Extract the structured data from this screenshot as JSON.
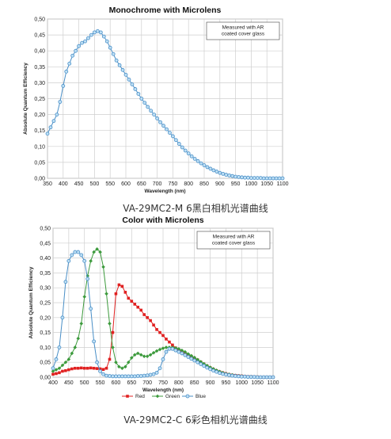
{
  "captions": {
    "mono": "VA-29MC2-M 6黑白相机光谱曲线",
    "color": "VA-29MC2-C 6彩色相机光谱曲线"
  },
  "colors": {
    "mono": "#4a8fc7",
    "red": "#e02020",
    "green": "#3c9a3c",
    "blue": "#4a8fc7",
    "grid": "#cfcfcf"
  },
  "chart_data": [
    {
      "type": "line",
      "title": "Monochrome with Microlens",
      "xlabel": "Wavelength (nm)",
      "ylabel": "Absolute Quantum Efficiency",
      "note": [
        "Measured with AR",
        "coated cover glass"
      ],
      "xlim": [
        350,
        1100
      ],
      "ylim": [
        0,
        0.5
      ],
      "xticks": [
        350,
        400,
        450,
        500,
        550,
        600,
        650,
        700,
        750,
        800,
        850,
        900,
        950,
        1000,
        1050,
        1100
      ],
      "xtick_labels": [
        "350",
        "400",
        "450",
        "500",
        "550",
        "600",
        "650",
        "700",
        "750",
        "800",
        "850",
        "900",
        "950",
        "1000",
        "1050",
        "1100"
      ],
      "yticks": [
        0,
        0.05,
        0.1,
        0.15,
        0.2,
        0.25,
        0.3,
        0.35,
        0.4,
        0.45,
        0.5
      ],
      "ytick_labels": [
        "0,00",
        "0,05",
        "0,10",
        "0,15",
        "0,20",
        "0,25",
        "0,30",
        "0,35",
        "0,40",
        "0,45",
        "0,50"
      ],
      "grid": true,
      "series": [
        {
          "color_key": "mono",
          "x": [
            350,
            360,
            370,
            380,
            390,
            400,
            410,
            420,
            430,
            440,
            450,
            460,
            470,
            480,
            490,
            500,
            510,
            520,
            530,
            540,
            550,
            560,
            570,
            580,
            590,
            600,
            610,
            620,
            630,
            640,
            650,
            660,
            670,
            680,
            690,
            700,
            710,
            720,
            730,
            740,
            750,
            760,
            770,
            780,
            790,
            800,
            810,
            820,
            830,
            840,
            850,
            860,
            870,
            880,
            890,
            900,
            910,
            920,
            930,
            940,
            950,
            960,
            970,
            980,
            990,
            1000,
            1010,
            1020,
            1030,
            1040,
            1050,
            1060,
            1070,
            1080,
            1090,
            1100
          ],
          "values": [
            0.14,
            0.16,
            0.18,
            0.2,
            0.24,
            0.29,
            0.335,
            0.36,
            0.385,
            0.4,
            0.415,
            0.425,
            0.43,
            0.44,
            0.45,
            0.458,
            0.462,
            0.458,
            0.445,
            0.43,
            0.41,
            0.39,
            0.37,
            0.355,
            0.34,
            0.325,
            0.31,
            0.295,
            0.28,
            0.265,
            0.25,
            0.237,
            0.224,
            0.212,
            0.2,
            0.188,
            0.176,
            0.165,
            0.154,
            0.143,
            0.132,
            0.12,
            0.108,
            0.097,
            0.087,
            0.078,
            0.069,
            0.061,
            0.054,
            0.047,
            0.041,
            0.035,
            0.03,
            0.025,
            0.021,
            0.017,
            0.014,
            0.011,
            0.009,
            0.007,
            0.005,
            0.004,
            0.003,
            0.002,
            0.002,
            0.001,
            0.001,
            0.001,
            0.001,
            0.0,
            0.0,
            0.0,
            0.0,
            0.0,
            0.0,
            0.0
          ]
        }
      ]
    },
    {
      "type": "line",
      "title": "Color with Microlens",
      "xlabel": "Wavelength (nm)",
      "ylabel": "Absolute Quantum Efficiency",
      "note": [
        "Measured with AR",
        "coated cover glass"
      ],
      "xlim": [
        400,
        1100
      ],
      "ylim": [
        0,
        0.5
      ],
      "xticks": [
        400,
        450,
        500,
        550,
        600,
        650,
        700,
        750,
        800,
        850,
        900,
        950,
        1000,
        1050,
        1100
      ],
      "xtick_labels": [
        "400",
        "450",
        "500",
        "550",
        "600",
        "650",
        "700",
        "750",
        "800",
        "850",
        "900",
        "950",
        "1000",
        "1050",
        "1100"
      ],
      "yticks": [
        0,
        0.05,
        0.1,
        0.15,
        0.2,
        0.25,
        0.3,
        0.35,
        0.4,
        0.45,
        0.5
      ],
      "ytick_labels": [
        "0,00",
        "0,05",
        "0,10",
        "0,15",
        "0,20",
        "0,25",
        "0,30",
        "0,35",
        "0,40",
        "0,45",
        "0,50"
      ],
      "grid": true,
      "legend": "bottom",
      "series": [
        {
          "name": "Red",
          "color_key": "red",
          "marker": "square",
          "x": [
            400,
            410,
            420,
            430,
            440,
            450,
            460,
            470,
            480,
            490,
            500,
            510,
            520,
            530,
            540,
            550,
            560,
            570,
            580,
            590,
            600,
            610,
            620,
            630,
            640,
            650,
            660,
            670,
            680,
            690,
            700,
            710,
            720,
            730,
            740,
            750,
            760,
            770,
            780,
            790,
            800,
            810,
            820,
            830,
            840,
            850,
            860,
            870,
            880,
            890,
            900,
            910,
            920,
            930,
            940,
            950,
            960,
            970,
            980,
            990,
            1000,
            1010,
            1020,
            1030,
            1040,
            1050,
            1060,
            1070,
            1080,
            1090,
            1100
          ],
          "values": [
            0.01,
            0.012,
            0.015,
            0.02,
            0.022,
            0.025,
            0.028,
            0.03,
            0.03,
            0.031,
            0.03,
            0.03,
            0.031,
            0.03,
            0.029,
            0.028,
            0.026,
            0.03,
            0.06,
            0.15,
            0.28,
            0.31,
            0.305,
            0.285,
            0.265,
            0.255,
            0.245,
            0.235,
            0.225,
            0.21,
            0.2,
            0.19,
            0.175,
            0.16,
            0.15,
            0.14,
            0.128,
            0.118,
            0.108,
            0.098,
            0.09,
            0.085,
            0.08,
            0.075,
            0.07,
            0.064,
            0.058,
            0.051,
            0.044,
            0.038,
            0.032,
            0.027,
            0.022,
            0.018,
            0.015,
            0.012,
            0.009,
            0.007,
            0.006,
            0.005,
            0.004,
            0.003,
            0.002,
            0.002,
            0.001,
            0.001,
            0.0,
            0.0,
            0.0,
            0.0,
            0.0
          ]
        },
        {
          "name": "Green",
          "color_key": "green",
          "marker": "diamond",
          "x": [
            400,
            410,
            420,
            430,
            440,
            450,
            460,
            470,
            480,
            490,
            500,
            510,
            520,
            530,
            540,
            550,
            560,
            570,
            580,
            590,
            600,
            610,
            620,
            630,
            640,
            650,
            660,
            670,
            680,
            690,
            700,
            710,
            720,
            730,
            740,
            750,
            760,
            770,
            780,
            790,
            800,
            810,
            820,
            830,
            840,
            850,
            860,
            870,
            880,
            890,
            900,
            910,
            920,
            930,
            940,
            950,
            960,
            970,
            980,
            990,
            1000,
            1010,
            1020,
            1030,
            1040,
            1050,
            1060,
            1070,
            1080,
            1090,
            1100
          ],
          "values": [
            0.02,
            0.025,
            0.03,
            0.04,
            0.05,
            0.06,
            0.08,
            0.1,
            0.13,
            0.18,
            0.27,
            0.34,
            0.39,
            0.42,
            0.43,
            0.42,
            0.37,
            0.28,
            0.18,
            0.1,
            0.05,
            0.035,
            0.03,
            0.035,
            0.05,
            0.065,
            0.075,
            0.08,
            0.075,
            0.07,
            0.07,
            0.075,
            0.082,
            0.088,
            0.093,
            0.097,
            0.1,
            0.1,
            0.1,
            0.098,
            0.095,
            0.09,
            0.085,
            0.078,
            0.072,
            0.066,
            0.059,
            0.052,
            0.045,
            0.039,
            0.033,
            0.028,
            0.023,
            0.019,
            0.015,
            0.012,
            0.01,
            0.008,
            0.006,
            0.005,
            0.004,
            0.003,
            0.002,
            0.002,
            0.001,
            0.001,
            0.0,
            0.0,
            0.0,
            0.0,
            0.0
          ]
        },
        {
          "name": "Blue",
          "color_key": "blue",
          "marker": "circle",
          "x": [
            400,
            410,
            420,
            430,
            440,
            450,
            460,
            470,
            480,
            490,
            500,
            510,
            520,
            530,
            540,
            550,
            560,
            570,
            580,
            590,
            600,
            610,
            620,
            630,
            640,
            650,
            660,
            670,
            680,
            690,
            700,
            710,
            720,
            730,
            740,
            750,
            760,
            770,
            780,
            790,
            800,
            810,
            820,
            830,
            840,
            850,
            860,
            870,
            880,
            890,
            900,
            910,
            920,
            930,
            940,
            950,
            960,
            970,
            980,
            990,
            1000,
            1010,
            1020,
            1030,
            1040,
            1050,
            1060,
            1070,
            1080,
            1090,
            1100
          ],
          "values": [
            0.03,
            0.06,
            0.1,
            0.2,
            0.32,
            0.39,
            0.41,
            0.42,
            0.42,
            0.41,
            0.39,
            0.33,
            0.23,
            0.12,
            0.05,
            0.02,
            0.01,
            0.005,
            0.004,
            0.003,
            0.003,
            0.003,
            0.003,
            0.003,
            0.003,
            0.003,
            0.003,
            0.004,
            0.004,
            0.005,
            0.006,
            0.008,
            0.01,
            0.015,
            0.03,
            0.06,
            0.085,
            0.095,
            0.095,
            0.09,
            0.085,
            0.08,
            0.074,
            0.068,
            0.062,
            0.056,
            0.05,
            0.044,
            0.038,
            0.032,
            0.027,
            0.022,
            0.018,
            0.014,
            0.011,
            0.009,
            0.007,
            0.005,
            0.004,
            0.003,
            0.002,
            0.002,
            0.001,
            0.001,
            0.001,
            0.0,
            0.0,
            0.0,
            0.0,
            0.0,
            0.0
          ]
        }
      ]
    }
  ]
}
